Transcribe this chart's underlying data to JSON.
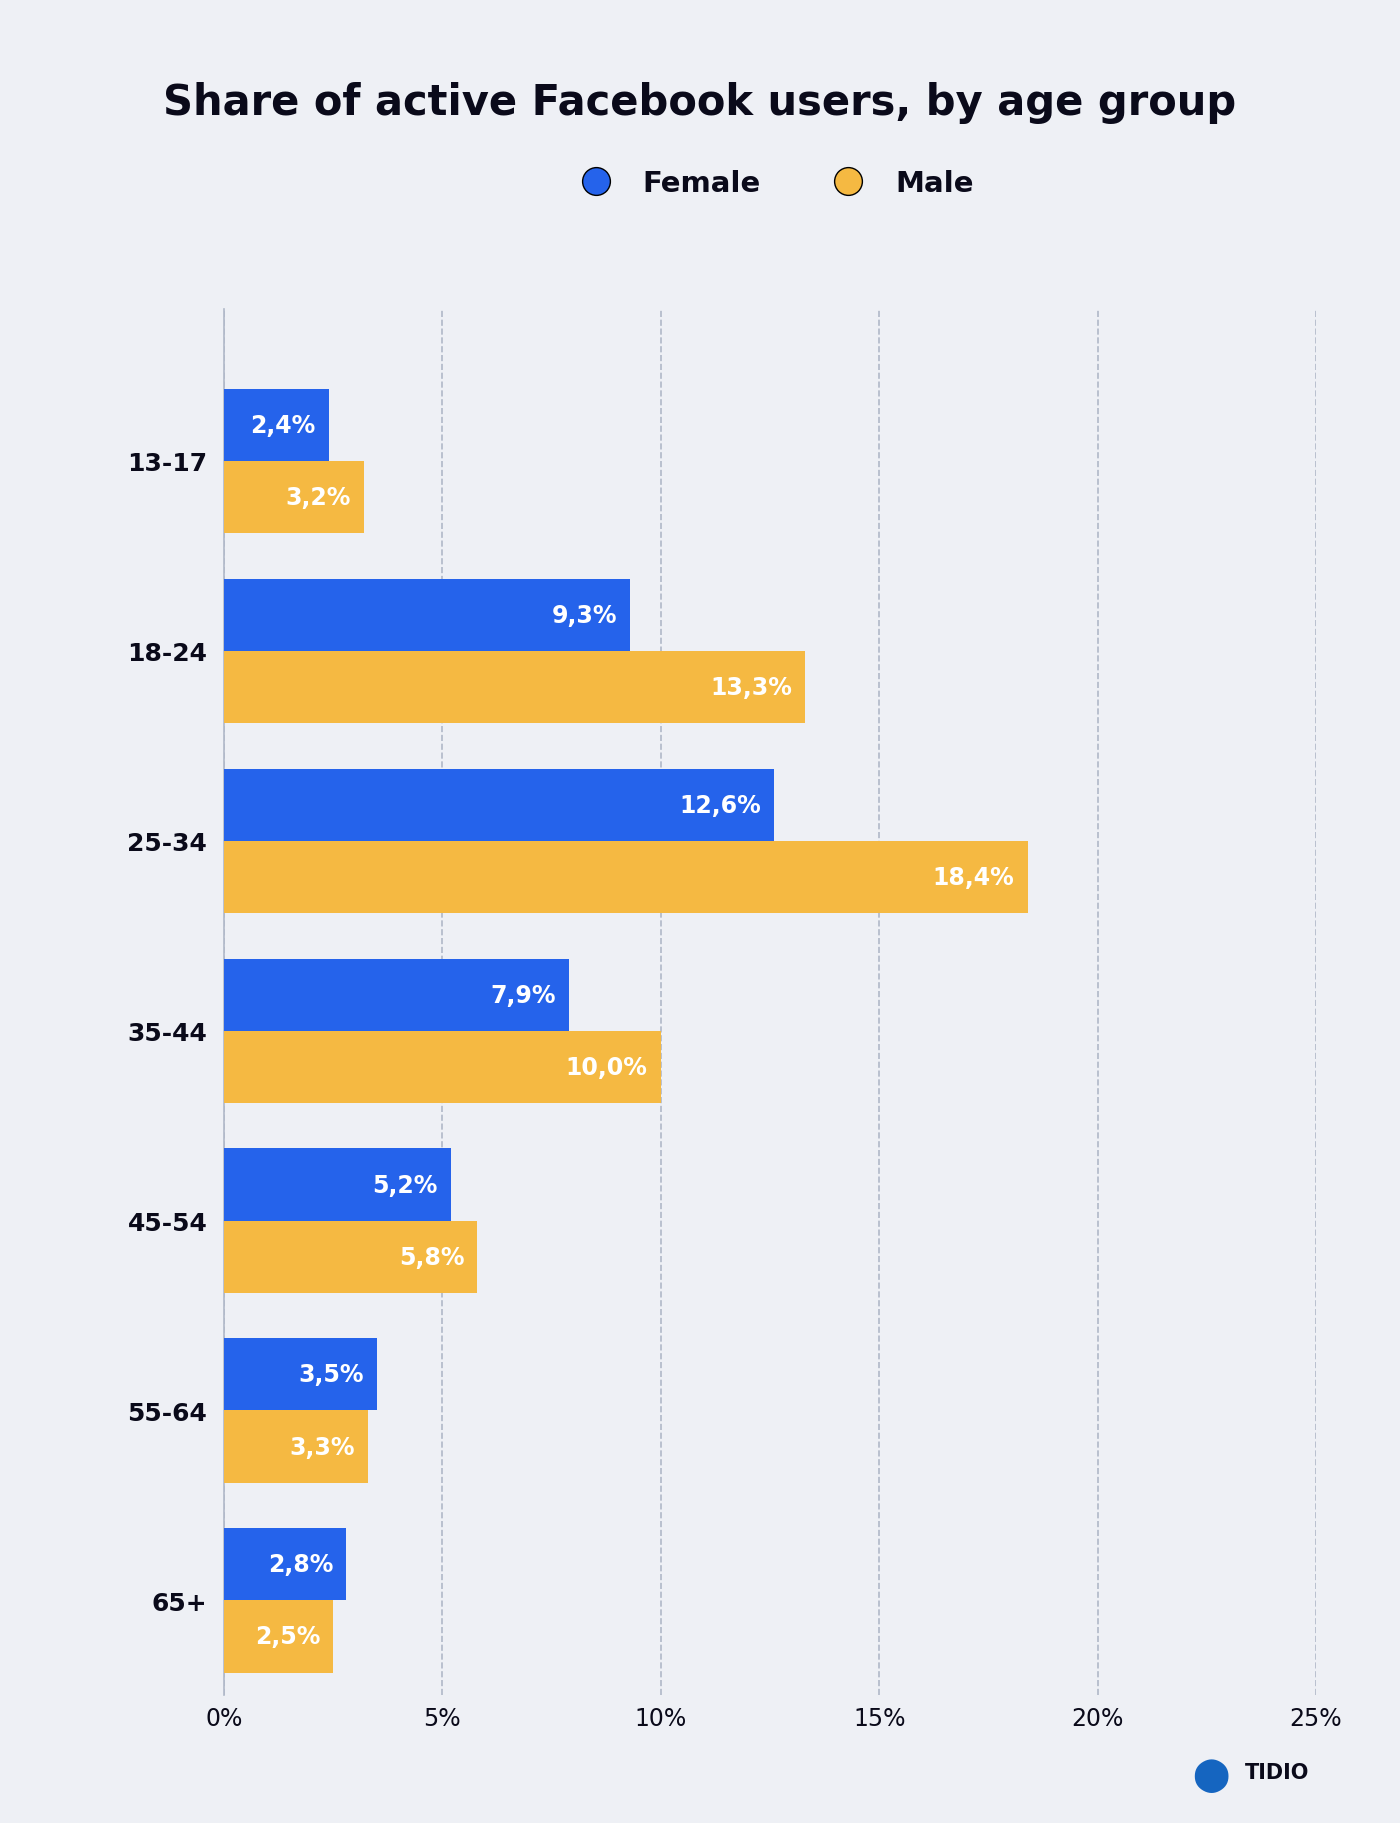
{
  "title": "Share of active Facebook users, by age group",
  "background_color": "#eef0f5",
  "age_groups": [
    "13-17",
    "18-24",
    "25-34",
    "35-44",
    "45-54",
    "55-64",
    "65+"
  ],
  "female_values": [
    2.4,
    9.3,
    12.6,
    7.9,
    5.2,
    3.5,
    2.8
  ],
  "male_values": [
    3.2,
    13.3,
    18.4,
    10.0,
    5.8,
    3.3,
    2.5
  ],
  "female_color": "#2563eb",
  "male_color": "#f5b942",
  "female_label": "Female",
  "male_label": "Male",
  "xlim": [
    0,
    25
  ],
  "xticks": [
    0,
    5,
    10,
    15,
    20,
    25
  ],
  "xtick_labels": [
    "0%",
    "5%",
    "10%",
    "15%",
    "20%",
    "25%"
  ],
  "bar_height": 0.38,
  "label_fontsize": 18,
  "title_fontsize": 30,
  "tick_fontsize": 17,
  "legend_fontsize": 21,
  "value_label_fontsize": 17,
  "text_color": "#0a0a1a",
  "grid_color": "#b0b8c8",
  "tidio_logo_text": "TIDIO"
}
